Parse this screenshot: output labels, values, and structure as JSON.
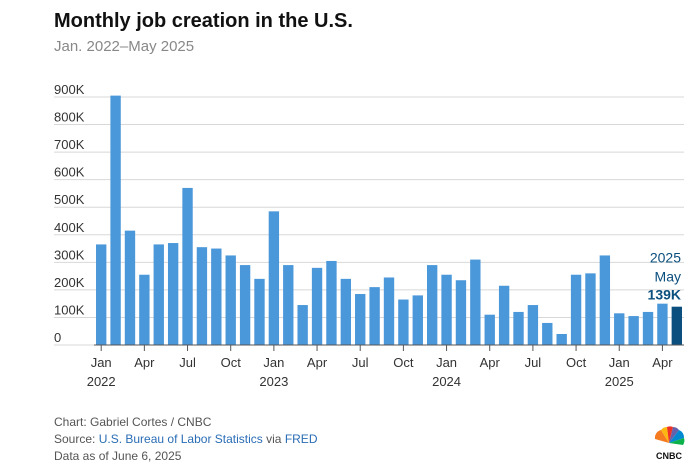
{
  "title": "Monthly job creation in the U.S.",
  "subtitle": "Jan. 2022–May 2025",
  "chart_data": {
    "type": "bar",
    "ylim": [
      0,
      900000
    ],
    "yticks": [
      {
        "value": 0,
        "label": "0"
      },
      {
        "value": 100000,
        "label": "100K"
      },
      {
        "value": 200000,
        "label": "200K"
      },
      {
        "value": 300000,
        "label": "300K"
      },
      {
        "value": 400000,
        "label": "400K"
      },
      {
        "value": 500000,
        "label": "500K"
      },
      {
        "value": 600000,
        "label": "600K"
      },
      {
        "value": 700000,
        "label": "700K"
      },
      {
        "value": 800000,
        "label": "800K"
      },
      {
        "value": 900000,
        "label": "900K"
      }
    ],
    "grid": true,
    "categories": [
      "2022-01",
      "2022-02",
      "2022-03",
      "2022-04",
      "2022-05",
      "2022-06",
      "2022-07",
      "2022-08",
      "2022-09",
      "2022-10",
      "2022-11",
      "2022-12",
      "2023-01",
      "2023-02",
      "2023-03",
      "2023-04",
      "2023-05",
      "2023-06",
      "2023-07",
      "2023-08",
      "2023-09",
      "2023-10",
      "2023-11",
      "2023-12",
      "2024-01",
      "2024-02",
      "2024-03",
      "2024-04",
      "2024-05",
      "2024-06",
      "2024-07",
      "2024-08",
      "2024-09",
      "2024-10",
      "2024-11",
      "2024-12",
      "2025-01",
      "2025-02",
      "2025-03",
      "2025-04",
      "2025-05"
    ],
    "values": [
      365000,
      905000,
      415000,
      255000,
      365000,
      370000,
      570000,
      355000,
      350000,
      325000,
      290000,
      240000,
      485000,
      290000,
      145000,
      280000,
      305000,
      240000,
      185000,
      210000,
      245000,
      165000,
      180000,
      290000,
      255000,
      235000,
      310000,
      110000,
      215000,
      120000,
      145000,
      80000,
      40000,
      255000,
      260000,
      325000,
      115000,
      105000,
      120000,
      150000,
      139000
    ],
    "xticks": [
      {
        "index": 0,
        "label": "Jan",
        "year": "2022"
      },
      {
        "index": 3,
        "label": "Apr",
        "year": ""
      },
      {
        "index": 6,
        "label": "Jul",
        "year": ""
      },
      {
        "index": 9,
        "label": "Oct",
        "year": ""
      },
      {
        "index": 12,
        "label": "Jan",
        "year": "2023"
      },
      {
        "index": 15,
        "label": "Apr",
        "year": ""
      },
      {
        "index": 18,
        "label": "Jul",
        "year": ""
      },
      {
        "index": 21,
        "label": "Oct",
        "year": ""
      },
      {
        "index": 24,
        "label": "Jan",
        "year": "2024"
      },
      {
        "index": 27,
        "label": "Apr",
        "year": ""
      },
      {
        "index": 30,
        "label": "Jul",
        "year": ""
      },
      {
        "index": 33,
        "label": "Oct",
        "year": ""
      },
      {
        "index": 36,
        "label": "Jan",
        "year": "2025"
      },
      {
        "index": 39,
        "label": "Apr",
        "year": ""
      }
    ],
    "annotation": {
      "year": "2025",
      "month": "May",
      "value_label": "139K"
    },
    "bar_color": "#4a97d9",
    "highlight_color": "#0b4f7e"
  },
  "footer": {
    "credit": "Chart: Gabriel Cortes / CNBC",
    "source_prefix": "Source: ",
    "source_link": "U.S. Bureau of Labor Statistics",
    "source_via": " via ",
    "source_link2": "FRED",
    "data_as_of": "Data as of June 6, 2025"
  },
  "logo_text": "CNBC"
}
